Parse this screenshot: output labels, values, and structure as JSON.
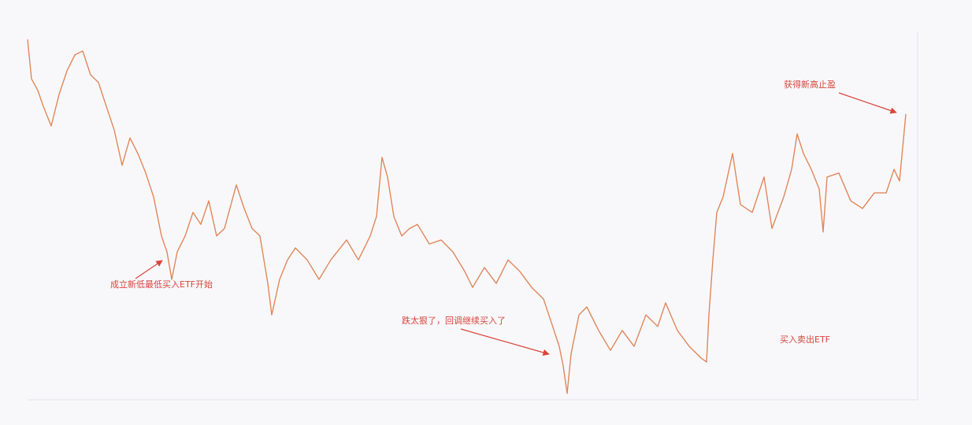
{
  "chart_data": {
    "type": "line",
    "color": "#e0875a",
    "xlim": [
      0,
      1125
    ],
    "ylim": [
      0,
      100
    ],
    "x": [
      0,
      5,
      13,
      20,
      30,
      40,
      50,
      60,
      70,
      80,
      90,
      100,
      110,
      120,
      130,
      140,
      150,
      160,
      170,
      177,
      183,
      190,
      200,
      210,
      220,
      230,
      240,
      250,
      265,
      275,
      285,
      295,
      305,
      310,
      320,
      330,
      340,
      355,
      370,
      385,
      405,
      420,
      435,
      443,
      450,
      457,
      465,
      475,
      485,
      495,
      510,
      525,
      540,
      555,
      565,
      580,
      595,
      610,
      625,
      640,
      655,
      665,
      675,
      680,
      685,
      690,
      700,
      710,
      725,
      740,
      755,
      770,
      785,
      800,
      810,
      825,
      840,
      855,
      862,
      865,
      870,
      875,
      883,
      895,
      905,
      920,
      935,
      945,
      960,
      970,
      977,
      985,
      995,
      1005,
      1010,
      1015,
      1030,
      1045,
      1060,
      1075,
      1090,
      1100,
      1107,
      1115
    ],
    "values": [
      98.9,
      88.0,
      84.8,
      80.4,
      75.0,
      83.7,
      90.2,
      94.6,
      95.7,
      89.1,
      87.0,
      80.4,
      73.9,
      64.1,
      71.7,
      67.4,
      62.0,
      55.4,
      44.6,
      40.2,
      32.6,
      40.2,
      44.6,
      51.1,
      47.8,
      54.3,
      44.6,
      46.7,
      58.7,
      52.2,
      46.7,
      44.6,
      31.5,
      22.8,
      32.6,
      38.0,
      41.3,
      38.0,
      32.6,
      38.0,
      43.5,
      38.0,
      44.6,
      50.0,
      66.3,
      60.9,
      50.0,
      44.6,
      46.7,
      47.8,
      42.4,
      43.5,
      40.2,
      34.8,
      30.4,
      35.9,
      31.5,
      38.0,
      34.8,
      30.4,
      27.2,
      20.7,
      14.1,
      8.7,
      1.1,
      12.0,
      22.8,
      25.0,
      18.5,
      13.0,
      18.5,
      14.1,
      22.8,
      19.6,
      26.1,
      18.5,
      14.1,
      10.9,
      9.8,
      22.8,
      38.0,
      51.1,
      55.4,
      67.4,
      53.3,
      51.1,
      60.9,
      46.7,
      55.4,
      63.0,
      72.8,
      67.4,
      63.0,
      57.6,
      45.7,
      60.9,
      62.0,
      54.3,
      52.2,
      56.5,
      56.5,
      63.0,
      59.8,
      78.3
    ],
    "annotations": [
      "成立新低最低买入ETF开始",
      "跌太狠了，回调继续买入了",
      "获得新高止盈",
      "买入卖出ETF"
    ]
  }
}
